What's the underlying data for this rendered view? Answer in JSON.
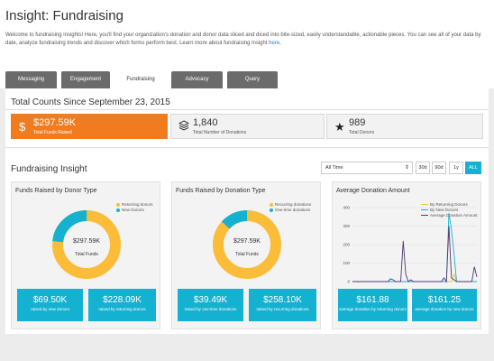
{
  "header": {
    "title": "Insight: Fundraising",
    "intro": "Welcome to fundraising insights! Here, you'll find your organization's donation and donor data sliced and diced into bite-sized, easily understandable, actionable pieces. You can see all of your data by date, analyze fundraising trends and discover which forms perform best. Learn more about fundraising insight",
    "intro_link": "here",
    "intro_end": "."
  },
  "tabs": [
    {
      "label": "Messaging"
    },
    {
      "label": "Engagement"
    },
    {
      "label": "Fundraising",
      "active": true
    },
    {
      "label": "Advocacy"
    },
    {
      "label": "Query"
    }
  ],
  "totals": {
    "title": "Total Counts Since September 23, 2015",
    "kpis": [
      {
        "value": "$297.59K",
        "label": "Total Funds Raised",
        "icon": "dollar-icon"
      },
      {
        "value": "1,840",
        "label": "Total Number of Donations",
        "icon": "stack-icon"
      },
      {
        "value": "989",
        "label": "Total Donors",
        "icon": "star-icon"
      }
    ]
  },
  "insight": {
    "title": "Fundraising Insight",
    "range_select": "All Time",
    "range_buttons": [
      "30d",
      "90d",
      "1y",
      "ALL"
    ],
    "active_range": "ALL"
  },
  "colors": {
    "yellow": "#fbbc38",
    "teal": "#15b1d0",
    "orange": "#f07c1f",
    "purple": "#55356e"
  },
  "cards": {
    "donor_type": {
      "title": "Funds Raised by Donor Type",
      "legend": [
        "Returning donors",
        "New Donors"
      ],
      "center_value": "$297.59K",
      "center_label": "Total Funds",
      "stats": [
        {
          "value": "$69.50K",
          "label": "raised by new donors"
        },
        {
          "value": "$228.09K",
          "label": "raised by returning donors"
        }
      ]
    },
    "donation_type": {
      "title": "Funds Raised by Donation Type",
      "legend": [
        "Recurring donations",
        "One-time donations"
      ],
      "center_value": "$297.59K",
      "center_label": "Total Funds",
      "stats": [
        {
          "value": "$39.49K",
          "label": "raised by one-time donations"
        },
        {
          "value": "$258.10K",
          "label": "raised by recurring donations"
        }
      ]
    },
    "average": {
      "title": "Average Donation Amount",
      "legend": [
        "By Returning Donors",
        "By New Donors",
        "Average Donation Amount"
      ],
      "yticks": [
        "400",
        "300",
        "200",
        "100",
        "0"
      ],
      "stats": [
        {
          "value": "$161.88",
          "label": "average donation by returning donors"
        },
        {
          "value": "$161.25",
          "label": "average donation by new donors"
        }
      ]
    }
  },
  "chart_data": [
    {
      "type": "pie",
      "title": "Funds Raised by Donor Type",
      "labels": [
        "Returning donors",
        "New Donors"
      ],
      "values": [
        228.09,
        69.5
      ],
      "colors": [
        "#fbbc38",
        "#15b1d0"
      ]
    },
    {
      "type": "pie",
      "title": "Funds Raised by Donation Type",
      "labels": [
        "Recurring donations",
        "One-time donations"
      ],
      "values": [
        258.1,
        39.49
      ],
      "colors": [
        "#fbbc38",
        "#15b1d0"
      ]
    },
    {
      "type": "line",
      "title": "Average Donation Amount",
      "ylim": [
        0,
        400
      ],
      "yticks": [
        0,
        100,
        200,
        300,
        400
      ],
      "series": [
        {
          "name": "By Returning Donors",
          "color": "#fbbc38",
          "values": [
            0,
            0,
            0,
            0,
            0,
            0,
            0,
            0,
            0,
            0,
            0,
            0,
            0,
            0,
            0,
            0,
            0,
            0,
            0,
            0,
            0,
            0,
            0,
            0,
            0,
            0,
            0,
            0,
            0,
            0,
            0,
            0,
            0,
            0,
            0,
            0,
            0,
            0,
            0,
            0,
            40,
            0,
            0,
            0,
            0,
            0,
            0,
            0,
            0,
            0
          ]
        },
        {
          "name": "By New Donors",
          "color": "#15b1d0",
          "values": [
            0,
            0,
            0,
            0,
            0,
            0,
            0,
            0,
            0,
            0,
            0,
            0,
            0,
            0,
            0,
            0,
            0,
            0,
            0,
            0,
            0,
            0,
            0,
            0,
            0,
            0,
            0,
            0,
            0,
            0,
            0,
            0,
            0,
            0,
            0,
            0,
            0,
            0,
            370,
            280,
            150,
            0,
            0,
            0,
            0,
            0,
            0,
            0,
            0,
            0
          ]
        },
        {
          "name": "Average Donation Amount",
          "color": "#55356e",
          "values": [
            0,
            0,
            0,
            0,
            0,
            0,
            0,
            0,
            0,
            0,
            0,
            0,
            0,
            0,
            0,
            15,
            10,
            0,
            0,
            0,
            220,
            40,
            0,
            10,
            0,
            0,
            0,
            0,
            0,
            0,
            0,
            0,
            0,
            0,
            0,
            0,
            20,
            0,
            300,
            20,
            10,
            0,
            0,
            0,
            0,
            0,
            0,
            0,
            80,
            25
          ]
        }
      ]
    }
  ]
}
